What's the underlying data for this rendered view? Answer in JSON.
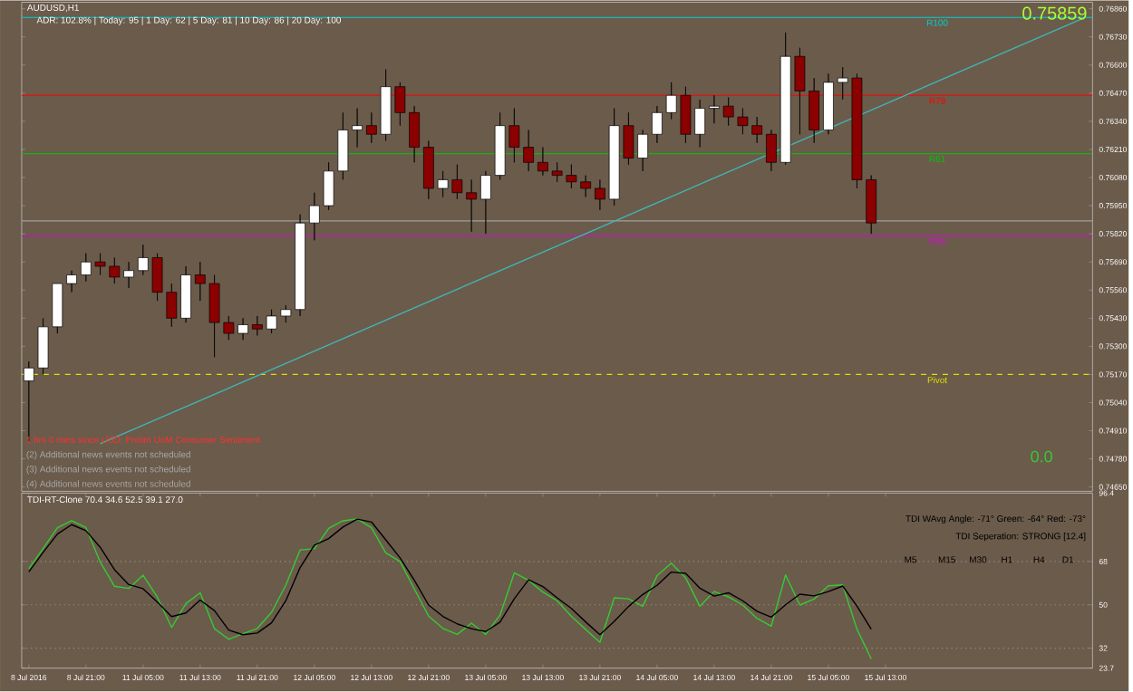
{
  "chart_data": [
    {
      "type": "candlestick",
      "title": "AUDUSD,H1",
      "subtitle": "ADR: 102.8% | Today: 95 | 1 Day: 62 | 5 Day: 81 | 10 Day: 86 | 20 Day: 100",
      "categories": [
        null,
        null,
        null,
        null,
        null,
        null,
        null,
        null,
        null,
        null,
        null,
        null,
        null,
        null,
        null,
        null,
        null,
        null,
        null,
        null,
        null,
        null,
        null,
        null,
        null,
        null,
        null,
        null,
        null,
        null,
        null,
        null,
        null,
        null,
        null,
        null,
        null,
        null,
        null,
        null,
        null,
        null,
        null,
        null,
        null,
        null,
        null,
        null,
        null,
        null,
        null,
        null,
        null,
        null,
        null,
        null,
        null,
        null,
        null,
        null,
        null,
        null,
        null,
        null,
        null,
        null,
        null,
        null,
        null,
        null,
        null,
        null,
        null,
        null,
        null
      ],
      "ohlc": [
        [
          0.7514,
          0.7523,
          0.7486,
          0.752
        ],
        [
          0.752,
          0.7543,
          0.7517,
          0.7539
        ],
        [
          0.7539,
          0.7559,
          0.7536,
          0.7559
        ],
        [
          0.7559,
          0.7565,
          0.7555,
          0.7563
        ],
        [
          0.7563,
          0.7573,
          0.756,
          0.7569
        ],
        [
          0.7569,
          0.7573,
          0.7563,
          0.7567
        ],
        [
          0.7567,
          0.7571,
          0.7559,
          0.7562
        ],
        [
          0.7562,
          0.7569,
          0.7557,
          0.7565
        ],
        [
          0.7565,
          0.7577,
          0.7563,
          0.7571
        ],
        [
          0.7571,
          0.7573,
          0.7551,
          0.7555
        ],
        [
          0.7555,
          0.7559,
          0.7539,
          0.7543
        ],
        [
          0.7543,
          0.7567,
          0.7541,
          0.7563
        ],
        [
          0.7563,
          0.7569,
          0.7551,
          0.7559
        ],
        [
          0.7559,
          0.7563,
          0.7525,
          0.7541
        ],
        [
          0.7541,
          0.7544,
          0.7533,
          0.7536
        ],
        [
          0.7536,
          0.7543,
          0.7533,
          0.754
        ],
        [
          0.754,
          0.7544,
          0.7535,
          0.7538
        ],
        [
          0.7538,
          0.7547,
          0.7536,
          0.7544
        ],
        [
          0.7544,
          0.7549,
          0.7541,
          0.7547
        ],
        [
          0.7547,
          0.7591,
          0.7544,
          0.7587
        ],
        [
          0.7587,
          0.7601,
          0.7579,
          0.7595
        ],
        [
          0.7595,
          0.7615,
          0.7593,
          0.7611
        ],
        [
          0.7611,
          0.7638,
          0.7607,
          0.763
        ],
        [
          0.763,
          0.764,
          0.7622,
          0.7632
        ],
        [
          0.7632,
          0.7638,
          0.7624,
          0.7628
        ],
        [
          0.7628,
          0.7658,
          0.7625,
          0.765
        ],
        [
          0.765,
          0.7652,
          0.7632,
          0.7638
        ],
        [
          0.7638,
          0.7641,
          0.7615,
          0.7622
        ],
        [
          0.7622,
          0.7625,
          0.7598,
          0.7603
        ],
        [
          0.7603,
          0.7611,
          0.7599,
          0.7607
        ],
        [
          0.7607,
          0.7614,
          0.7598,
          0.7601
        ],
        [
          0.7601,
          0.7607,
          0.7583,
          0.7598
        ],
        [
          0.7598,
          0.7611,
          0.7582,
          0.7609
        ],
        [
          0.7609,
          0.7638,
          0.7607,
          0.7632
        ],
        [
          0.7632,
          0.764,
          0.7615,
          0.7622
        ],
        [
          0.7622,
          0.763,
          0.7611,
          0.7615
        ],
        [
          0.7615,
          0.7622,
          0.7609,
          0.7611
        ],
        [
          0.7611,
          0.7615,
          0.7606,
          0.7609
        ],
        [
          0.7609,
          0.7614,
          0.7603,
          0.7606
        ],
        [
          0.7606,
          0.7609,
          0.7599,
          0.7603
        ],
        [
          0.7603,
          0.7607,
          0.7593,
          0.7598
        ],
        [
          0.7598,
          0.764,
          0.7595,
          0.7632
        ],
        [
          0.7632,
          0.7638,
          0.7614,
          0.7617
        ],
        [
          0.7617,
          0.763,
          0.7611,
          0.7628
        ],
        [
          0.7628,
          0.7641,
          0.7624,
          0.7638
        ],
        [
          0.7638,
          0.7652,
          0.7635,
          0.7646
        ],
        [
          0.7646,
          0.765,
          0.7624,
          0.7628
        ],
        [
          0.7628,
          0.7644,
          0.7622,
          0.764
        ],
        [
          0.764,
          0.7646,
          0.7633,
          0.7641
        ],
        [
          0.7641,
          0.7645,
          0.7632,
          0.7636
        ],
        [
          0.7636,
          0.764,
          0.7628,
          0.7632
        ],
        [
          0.7632,
          0.7636,
          0.7624,
          0.7628
        ],
        [
          0.7628,
          0.763,
          0.7611,
          0.7615
        ],
        [
          0.7615,
          0.7675,
          0.7614,
          0.7664
        ],
        [
          0.7664,
          0.7668,
          0.7628,
          0.7648
        ],
        [
          0.7648,
          0.7654,
          0.7624,
          0.763
        ],
        [
          0.763,
          0.7656,
          0.7628,
          0.7652
        ],
        [
          0.7652,
          0.7659,
          0.7644,
          0.7654
        ],
        [
          0.7654,
          0.7656,
          0.7603,
          0.7607
        ],
        [
          0.7607,
          0.7609,
          0.7582,
          0.7587
        ],
        null,
        null,
        null,
        null,
        null,
        null,
        null,
        null,
        null,
        null,
        null,
        null,
        null,
        null,
        null
      ],
      "colors": [
        "#ffffff",
        "#ffffff",
        "#ffffff",
        "#ffffff",
        "#ffffff",
        "#8b0000",
        "#8b0000",
        "#ffffff",
        "#ffffff",
        "#8b0000",
        "#8b0000",
        "#ffffff",
        "#8b0000",
        "#8b0000",
        "#8b0000",
        "#ffffff",
        "#8b0000",
        "#ffffff",
        "#ffffff",
        "#ffffff",
        "#ffffff",
        "#ffffff",
        "#ffffff",
        "#ffffff",
        "#8b0000",
        "#ffffff",
        "#8b0000",
        "#8b0000",
        "#8b0000",
        "#ffffff",
        "#8b0000",
        "#8b0000",
        "#ffffff",
        "#ffffff",
        "#8b0000",
        "#8b0000",
        "#8b0000",
        "#8b0000",
        "#8b0000",
        "#8b0000",
        "#8b0000",
        "#ffffff",
        "#8b0000",
        "#ffffff",
        "#ffffff",
        "#ffffff",
        "#8b0000",
        "#ffffff",
        "#ffffff",
        "#8b0000",
        "#8b0000",
        "#8b0000",
        "#8b0000",
        "#ffffff",
        "#8b0000",
        "#8b0000",
        "#ffffff",
        "#ffffff",
        "#8b0000",
        "#8b0000",
        null,
        null,
        null,
        null,
        null,
        null,
        null,
        null,
        null,
        null,
        null,
        null,
        null,
        null,
        null
      ],
      "series": [
        {
          "type": "line",
          "color": "#3fb6b6",
          "values": [
            null,
            null,
            null,
            null,
            null,
            0.7485,
            null,
            null,
            null,
            null,
            null,
            null,
            null,
            null,
            null,
            null,
            null,
            null,
            null,
            null,
            null,
            null,
            null,
            null,
            null,
            null,
            null,
            null,
            null,
            null,
            null,
            null,
            null,
            null,
            null,
            null,
            null,
            null,
            null,
            null,
            null,
            null,
            null,
            null,
            null,
            null,
            null,
            null,
            null,
            null,
            null,
            null,
            null,
            null,
            null,
            null,
            null,
            null,
            null,
            null,
            null,
            null,
            null,
            null,
            null,
            null,
            null,
            null,
            null,
            null,
            null,
            null,
            null,
            null,
            0.7682
          ]
        }
      ],
      "ylim": [
        0.7463,
        0.7689
      ],
      "yticks": [
        {
          "value": 0.7465,
          "label": "0.74650"
        },
        {
          "value": 0.7478,
          "label": "0.74780"
        },
        {
          "value": 0.7491,
          "label": "0.74910"
        },
        {
          "value": 0.7504,
          "label": "0.75040"
        },
        {
          "value": 0.7517,
          "label": "0.75170"
        },
        {
          "value": 0.753,
          "label": "0.75300"
        },
        {
          "value": 0.7543,
          "label": "0.75430"
        },
        {
          "value": 0.7556,
          "label": "0.75560"
        },
        {
          "value": 0.7569,
          "label": "0.75690"
        },
        {
          "value": 0.7582,
          "label": "0.75820"
        },
        {
          "value": 0.7595,
          "label": "0.75950"
        },
        {
          "value": 0.7608,
          "label": "0.76080"
        },
        {
          "value": 0.7621,
          "label": "0.76210"
        },
        {
          "value": 0.7634,
          "label": "0.76340"
        },
        {
          "value": 0.7647,
          "label": "0.76470"
        },
        {
          "value": 0.766,
          "label": "0.76600"
        },
        {
          "value": 0.7673,
          "label": "0.76730"
        },
        {
          "value": 0.7686,
          "label": "0.76860"
        }
      ],
      "ref_lines": [
        {
          "axis": "y",
          "value": 0.7682,
          "label": "R100",
          "color": "#00d0d0"
        },
        {
          "axis": "y",
          "value": 0.7646,
          "label": "R78",
          "color": "#ff0000"
        },
        {
          "axis": "y",
          "value": 0.7619,
          "label": "R61",
          "color": "#00c800"
        },
        {
          "axis": "y",
          "value": 0.7588,
          "color": "#a0a0a0"
        },
        {
          "axis": "y",
          "value": 0.7581,
          "label": "R38",
          "color": "#e000e0"
        },
        {
          "axis": "y",
          "value": 0.7517,
          "label": "Pivot",
          "color": "#e0e000",
          "line_style": "dashed"
        }
      ],
      "annotations": [
        "1 hrs 0 mins since USD: Prelim UoM Consumer Sentiment",
        "(2)  Additional news events not scheduled",
        "(3)  Additional news events not scheduled",
        "(4)  Additional news events not scheduled",
        "0.75859",
        "0.0"
      ],
      "tick_labels": "y"
    },
    {
      "type": "line",
      "title": "TDI-RT-Clone 70.4 34.6 52.5 39.1 27.0",
      "categories": [
        "8 Jul 2016",
        null,
        null,
        null,
        "8 Jul 21:00",
        null,
        null,
        null,
        "11 Jul 05:00",
        null,
        null,
        null,
        "11 Jul 13:00",
        null,
        null,
        null,
        "11 Jul 21:00",
        null,
        null,
        null,
        "12 Jul 05:00",
        null,
        null,
        null,
        "12 Jul 13:00",
        null,
        null,
        null,
        "12 Jul 21:00",
        null,
        null,
        null,
        "13 Jul 05:00",
        null,
        null,
        null,
        "13 Jul 13:00",
        null,
        null,
        null,
        "13 Jul 21:00",
        null,
        null,
        null,
        "14 Jul 05:00",
        null,
        null,
        null,
        "14 Jul 13:00",
        null,
        null,
        null,
        "14 Jul 21:00",
        null,
        null,
        null,
        "15 Jul 05:00",
        null,
        null,
        null,
        "15 Jul 13:00",
        null,
        null,
        null,
        null,
        null,
        null,
        null,
        null,
        null,
        null,
        null,
        null,
        null,
        null
      ],
      "series": [
        {
          "color": "#33cc33",
          "values": [
            65,
            73.4,
            82,
            84.9,
            82.1,
            67.8,
            57.7,
            56.8,
            62.3,
            53.2,
            40.6,
            50.5,
            55,
            40.1,
            35.7,
            38,
            40.2,
            46.9,
            58.2,
            72.8,
            73.3,
            81.7,
            84.9,
            85.7,
            82,
            71.6,
            68,
            56.6,
            45.3,
            40.2,
            37.7,
            42.4,
            37.7,
            45.7,
            63.3,
            60.2,
            55.3,
            51.7,
            45.2,
            39.8,
            34.4,
            52.9,
            52.5,
            49.4,
            62.1,
            67.3,
            61.2,
            49.4,
            55.5,
            53.3,
            49.9,
            44.4,
            41.1,
            62.4,
            49.9,
            52.4,
            57.9,
            58.3,
            39.9,
            27.5,
            null,
            null,
            null,
            null,
            null,
            null,
            null,
            null,
            null,
            null,
            null,
            null,
            null,
            null,
            null
          ]
        },
        {
          "color": "#000000",
          "values": [
            63.7,
            71.8,
            79.4,
            83.3,
            80.8,
            73.9,
            64.6,
            58.4,
            56.7,
            51.1,
            45.1,
            46.6,
            52,
            47.6,
            39.5,
            37.6,
            38.3,
            42.5,
            51.7,
            65.5,
            74.8,
            77.5,
            82.3,
            85.6,
            84.4,
            77,
            69.5,
            60.2,
            49.9,
            45.2,
            42.1,
            40.1,
            38.9,
            42.8,
            52.5,
            60.4,
            57.6,
            52.9,
            48.5,
            42.9,
            37.6,
            43.1,
            49.3,
            54.3,
            58.1,
            63.6,
            63.1,
            56.9,
            53.6,
            55,
            51.7,
            47.3,
            44.9,
            50,
            54.4,
            53.7,
            55.5,
            57.8,
            49.5,
            39.9,
            null,
            null,
            null,
            null,
            null,
            null,
            null,
            null,
            null,
            null,
            null,
            null,
            null,
            null,
            null
          ]
        }
      ],
      "ylim": [
        23.7,
        96.4
      ],
      "yticks": [
        23.7,
        32,
        50,
        68,
        96.4
      ],
      "ref_lines": [
        {
          "axis": "y",
          "value": 68,
          "color": "#a09080",
          "line_style": "dotted"
        },
        {
          "axis": "y",
          "value": 50,
          "color": "#a09080",
          "line_style": "dotted"
        },
        {
          "axis": "y",
          "value": 32,
          "color": "#a09080",
          "line_style": "dotted"
        }
      ],
      "annotations": [
        "TDI WAvg Angle: -71° Green: -64° Red: -73°",
        "TDI Seperation: STRONG [12.4]",
        "M5",
        "M15",
        "M30",
        "H1",
        "H4",
        "D1"
      ]
    }
  ]
}
